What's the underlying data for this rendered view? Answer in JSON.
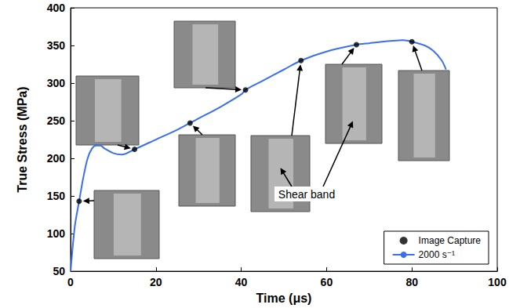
{
  "chart_data": {
    "type": "line",
    "x_label": "Time (μs)",
    "y_label": "True Stress (MPa)",
    "xlim": [
      0,
      100
    ],
    "xticks": [
      0,
      20,
      40,
      60,
      80,
      100
    ],
    "ylim": [
      50,
      400
    ],
    "yticks": [
      50,
      100,
      150,
      200,
      250,
      300,
      350,
      400
    ],
    "grid": false,
    "legend": "lower right",
    "annotations": [
      {
        "text": "Shear band"
      }
    ],
    "series": [
      {
        "name": "Image Capture",
        "type": "scatter",
        "marker": "circle",
        "color": "#000000",
        "x": [
          2,
          15,
          28,
          41,
          54,
          67,
          80
        ],
        "values": [
          143,
          212,
          247,
          291,
          330,
          351,
          355
        ]
      },
      {
        "name": "2000 s⁻¹",
        "type": "line",
        "color": "#3a6ff0",
        "line_style": "solid",
        "x": [
          0,
          1,
          2,
          3,
          4,
          5,
          6,
          7,
          8,
          10,
          12,
          15,
          20,
          25,
          28,
          30,
          35,
          40,
          41,
          45,
          50,
          54,
          60,
          67,
          70,
          75,
          78,
          80,
          83,
          85,
          87,
          88
        ],
        "values": [
          50,
          110,
          143,
          175,
          200,
          213,
          217,
          217,
          213,
          207,
          205,
          212,
          225,
          238,
          247,
          253,
          268,
          285,
          291,
          303,
          318,
          330,
          342,
          351,
          353,
          356,
          357,
          355,
          350,
          343,
          330,
          318
        ]
      }
    ]
  }
}
